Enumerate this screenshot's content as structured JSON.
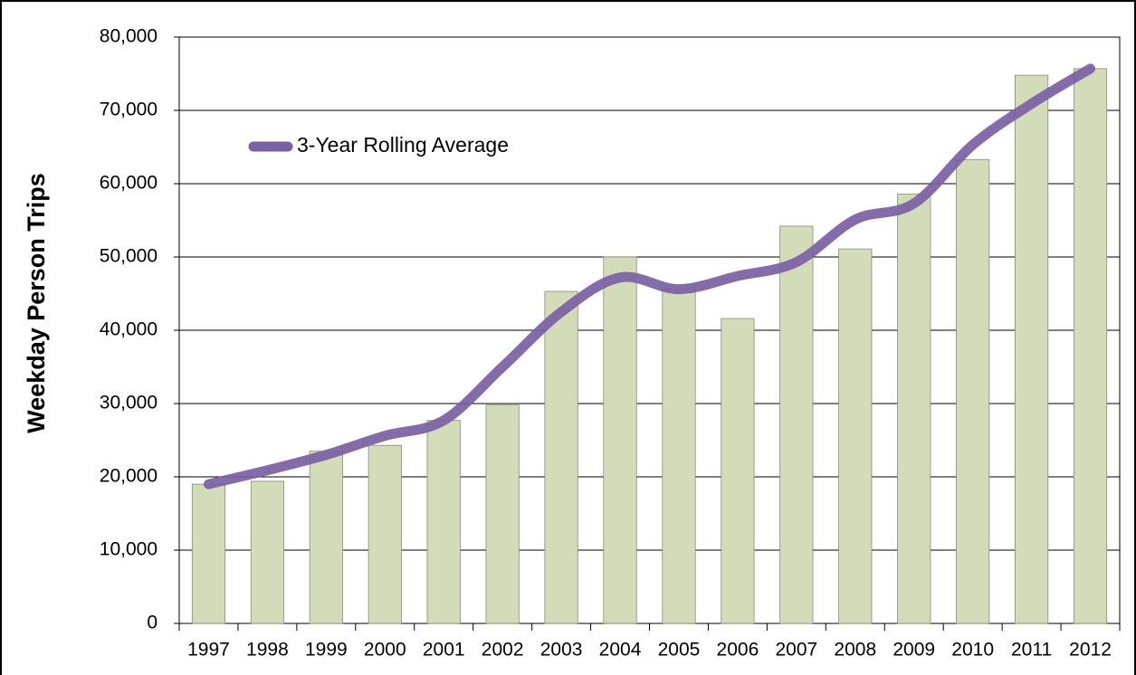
{
  "chart_data": {
    "type": "bar",
    "y_label": "Weekday Person Trips",
    "categories": [
      "1997",
      "1998",
      "1999",
      "2000",
      "2001",
      "2002",
      "2003",
      "2004",
      "2005",
      "2006",
      "2007",
      "2008",
      "2009",
      "2010",
      "2011",
      "2012"
    ],
    "series": [
      {
        "type": "bar",
        "color": "#d3dcb8",
        "values": [
          19000,
          19400,
          23500,
          24300,
          27700,
          29800,
          45300,
          50000,
          45600,
          41600,
          54200,
          51100,
          58600,
          63300,
          74800,
          75700
        ]
      },
      {
        "type": "line",
        "name": "3-Year Rolling Average",
        "color": "#7a60a4",
        "values": [
          19000,
          20900,
          23000,
          25600,
          27700,
          35000,
          42500,
          47200,
          45600,
          47400,
          49300,
          55100,
          57300,
          65300,
          70900,
          75700
        ]
      }
    ],
    "ylim": [
      0,
      80000
    ],
    "yticks": [
      0,
      {
        "value": 10000,
        "label": "10,000"
      },
      {
        "value": 20000,
        "label": "20,000"
      },
      {
        "value": 30000,
        "label": "30,000"
      },
      {
        "value": 40000,
        "label": "40,000"
      },
      {
        "value": 50000,
        "label": "50,000"
      },
      {
        "value": 60000,
        "label": "60,000"
      },
      {
        "value": 70000,
        "label": "70,000"
      },
      {
        "value": 80000,
        "label": "80,000"
      }
    ],
    "grid": true
  }
}
